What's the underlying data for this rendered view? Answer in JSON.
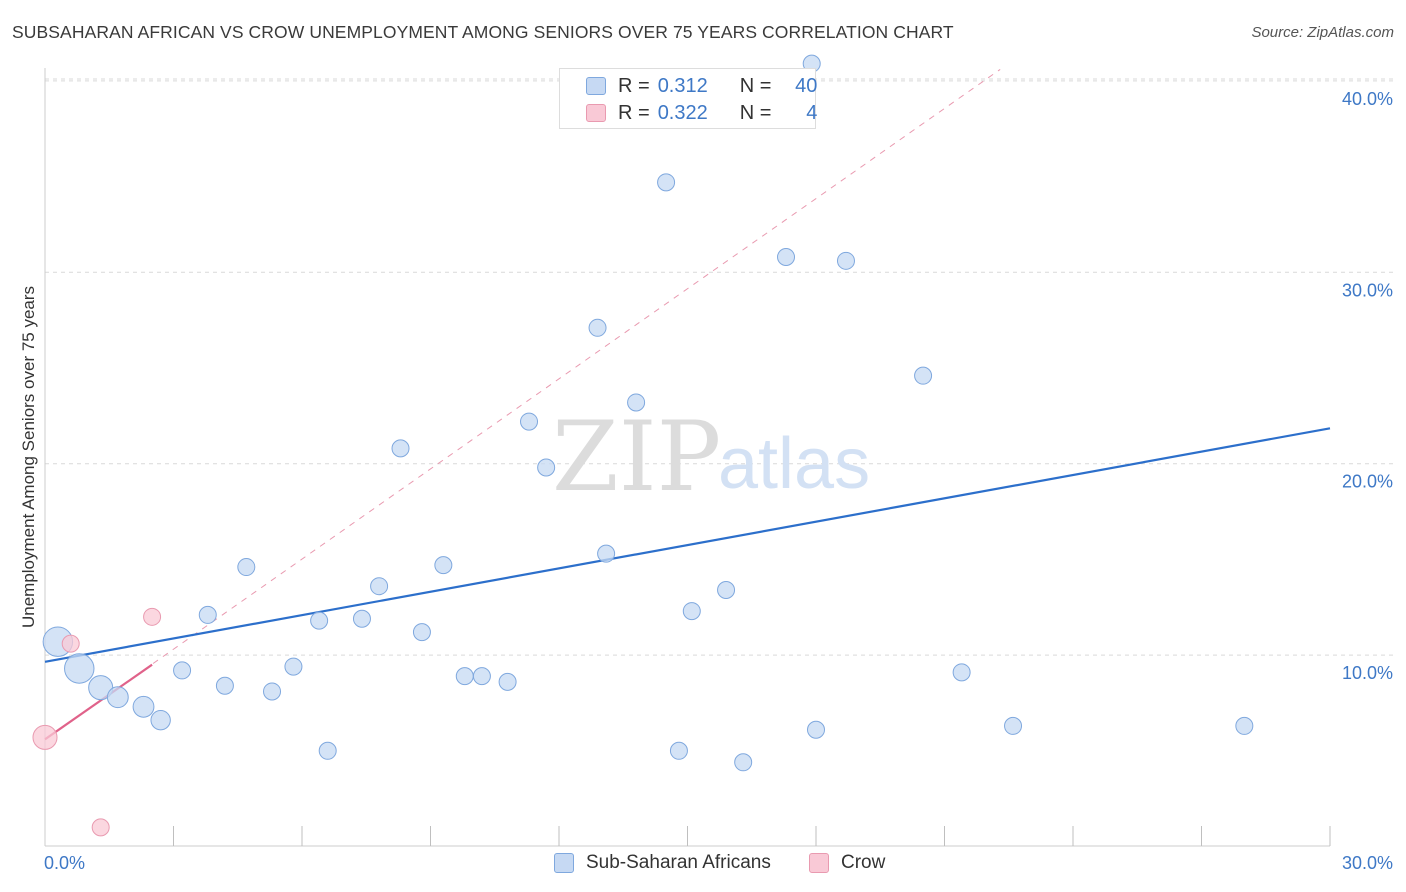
{
  "title": "SUBSAHARAN AFRICAN VS CROW UNEMPLOYMENT AMONG SENIORS OVER 75 YEARS CORRELATION CHART",
  "source": "Source: ZipAtlas.com",
  "watermark": {
    "zip": "ZIP",
    "atlas": "atlas"
  },
  "colors": {
    "blue_fill": "#c6d9f3",
    "blue_stroke": "#7fa8de",
    "blue_line": "#2c6fcb",
    "pink_fill": "#f9c9d6",
    "pink_stroke": "#e99ab0",
    "pink_line": "#e0628a",
    "grid": "#d9d9d9",
    "tick_text": "#3e78c6"
  },
  "legend": {
    "rows": [
      {
        "r_label": "R =",
        "r_value": "0.312",
        "n_label": "N =",
        "n_value": "40"
      },
      {
        "r_label": "R =",
        "r_value": "0.322",
        "n_label": "N =",
        "n_value": "4"
      }
    ]
  },
  "bottom_legend": {
    "items": [
      {
        "label": "Sub-Saharan Africans"
      },
      {
        "label": "Crow"
      }
    ]
  },
  "chart_data": {
    "type": "scatter",
    "title": "SUBSAHARAN AFRICAN VS CROW UNEMPLOYMENT AMONG SENIORS OVER 75 YEARS CORRELATION CHART",
    "xlabel": "",
    "ylabel": "Unemployment Among Seniors over 75 years",
    "xlim": [
      0,
      30
    ],
    "ylim": [
      0,
      41
    ],
    "x_tick_labels": [
      {
        "value": 0,
        "label": "0.0%"
      },
      {
        "value": 30,
        "label": "30.0%"
      }
    ],
    "y_tick_labels": [
      {
        "value": 10,
        "label": "10.0%"
      },
      {
        "value": 20,
        "label": "20.0%"
      },
      {
        "value": 30,
        "label": "30.0%"
      },
      {
        "value": 40,
        "label": "40.0%"
      }
    ],
    "x_minor_ticks": [
      3,
      6,
      9,
      12,
      15,
      18,
      21,
      24,
      27,
      30
    ],
    "series": [
      {
        "name": "Sub-Saharan Africans",
        "color": "blue",
        "R": 0.312,
        "N": 40,
        "points": [
          {
            "x": 0.3,
            "y": 10.7,
            "size": 3
          },
          {
            "x": 0.8,
            "y": 9.3,
            "size": 3
          },
          {
            "x": 1.3,
            "y": 8.3,
            "size": 2
          },
          {
            "x": 1.7,
            "y": 7.8,
            "size": 1.5
          },
          {
            "x": 2.3,
            "y": 7.3,
            "size": 1.5
          },
          {
            "x": 2.7,
            "y": 6.6,
            "size": 1.3
          },
          {
            "x": 3.2,
            "y": 9.2,
            "size": 1
          },
          {
            "x": 3.8,
            "y": 12.1,
            "size": 1
          },
          {
            "x": 4.2,
            "y": 8.4,
            "size": 1
          },
          {
            "x": 4.7,
            "y": 14.6,
            "size": 1
          },
          {
            "x": 5.3,
            "y": 8.1,
            "size": 1
          },
          {
            "x": 5.8,
            "y": 9.4,
            "size": 1
          },
          {
            "x": 6.4,
            "y": 11.8,
            "size": 1
          },
          {
            "x": 6.6,
            "y": 5.0,
            "size": 1
          },
          {
            "x": 7.4,
            "y": 11.9,
            "size": 1
          },
          {
            "x": 7.8,
            "y": 13.6,
            "size": 1
          },
          {
            "x": 8.3,
            "y": 20.8,
            "size": 1
          },
          {
            "x": 8.8,
            "y": 11.2,
            "size": 1
          },
          {
            "x": 9.3,
            "y": 14.7,
            "size": 1
          },
          {
            "x": 9.8,
            "y": 8.9,
            "size": 1
          },
          {
            "x": 10.2,
            "y": 8.9,
            "size": 1
          },
          {
            "x": 10.8,
            "y": 8.6,
            "size": 1
          },
          {
            "x": 11.3,
            "y": 22.2,
            "size": 1
          },
          {
            "x": 11.7,
            "y": 19.8,
            "size": 1
          },
          {
            "x": 12.9,
            "y": 27.1,
            "size": 1
          },
          {
            "x": 13.1,
            "y": 15.3,
            "size": 1
          },
          {
            "x": 13.8,
            "y": 23.2,
            "size": 1
          },
          {
            "x": 14.5,
            "y": 34.7,
            "size": 1
          },
          {
            "x": 14.8,
            "y": 5.0,
            "size": 1
          },
          {
            "x": 15.1,
            "y": 12.3,
            "size": 1
          },
          {
            "x": 15.9,
            "y": 13.4,
            "size": 1
          },
          {
            "x": 16.3,
            "y": 4.4,
            "size": 1
          },
          {
            "x": 17.3,
            "y": 30.8,
            "size": 1
          },
          {
            "x": 17.9,
            "y": 40.9,
            "size": 1
          },
          {
            "x": 18.0,
            "y": 6.1,
            "size": 1
          },
          {
            "x": 18.7,
            "y": 30.6,
            "size": 1
          },
          {
            "x": 20.5,
            "y": 24.6,
            "size": 1
          },
          {
            "x": 21.4,
            "y": 9.1,
            "size": 1
          },
          {
            "x": 22.6,
            "y": 6.3,
            "size": 1
          },
          {
            "x": 28.0,
            "y": 6.3,
            "size": 1
          }
        ],
        "trendline": {
          "x1": 0,
          "y1": 9.65,
          "x2": 30,
          "y2": 21.85
        }
      },
      {
        "name": "Crow",
        "color": "pink",
        "R": 0.322,
        "N": 4,
        "points": [
          {
            "x": 0.0,
            "y": 5.7,
            "size": 2
          },
          {
            "x": 0.6,
            "y": 10.6,
            "size": 1
          },
          {
            "x": 1.3,
            "y": 1.0,
            "size": 1
          },
          {
            "x": 2.5,
            "y": 12.0,
            "size": 1
          }
        ],
        "trendline": {
          "x1": 0,
          "y1": 5.6,
          "x2": 2.5,
          "y2": 9.5
        },
        "trendline_dashed": {
          "x1": 0,
          "y1": 5.6,
          "x2": 22.3,
          "y2": 40.6
        }
      }
    ]
  }
}
